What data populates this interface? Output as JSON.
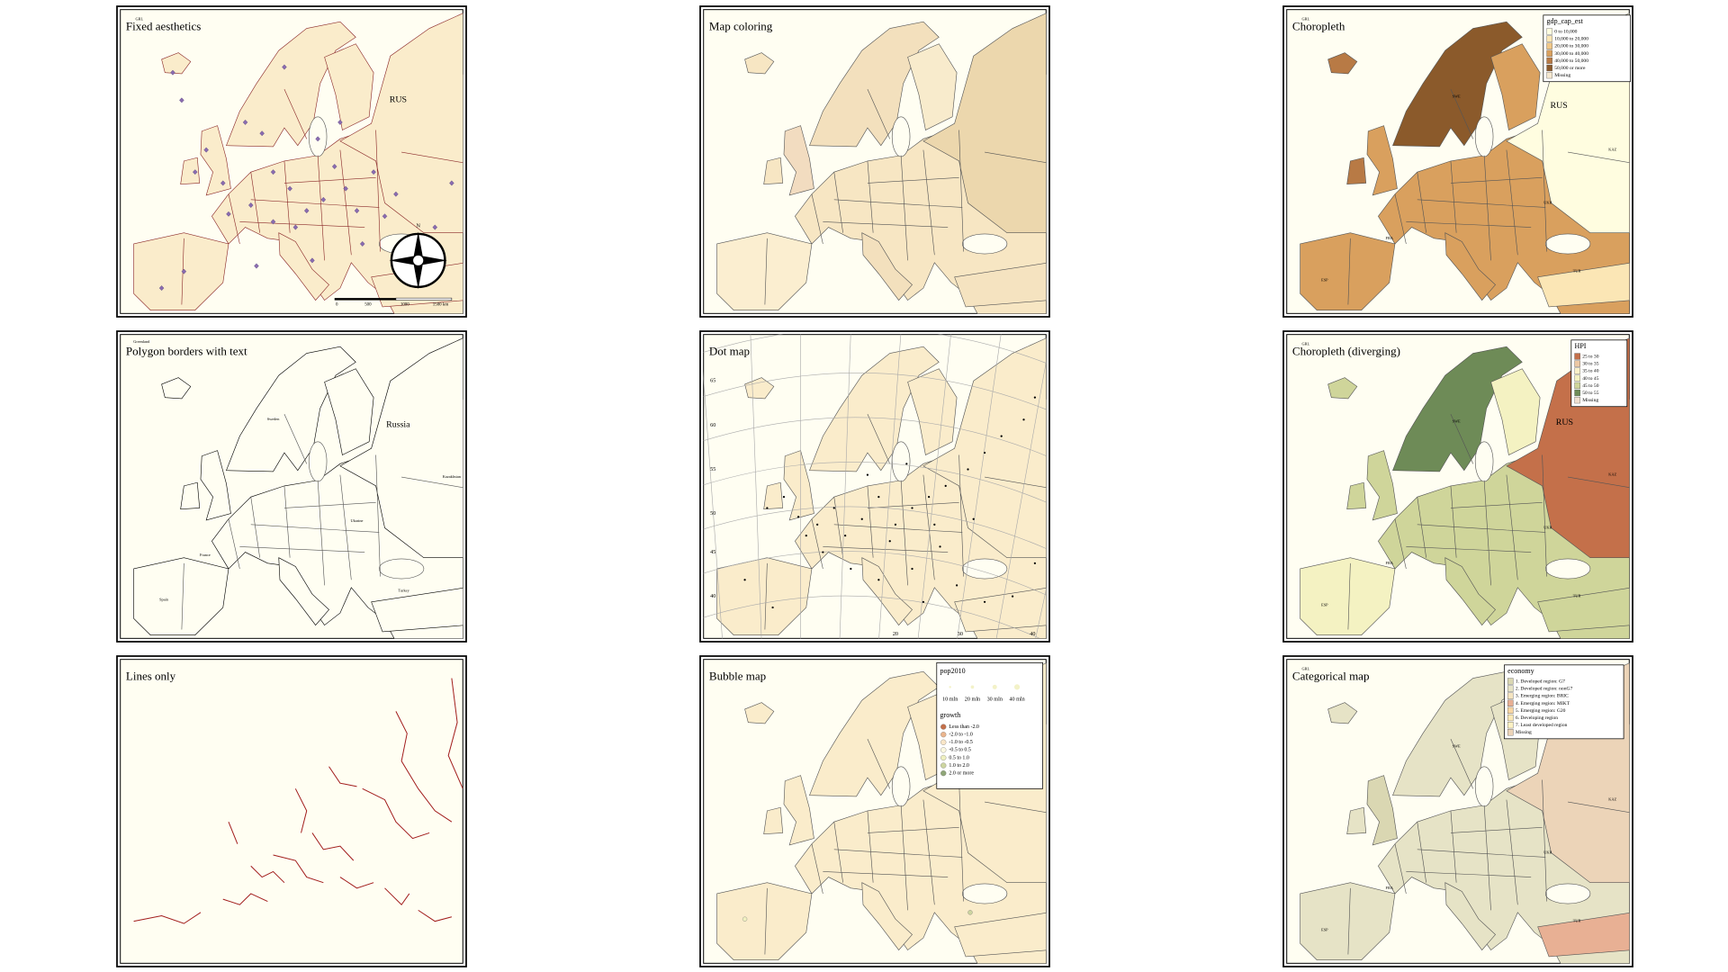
{
  "panels": [
    {
      "title": "Fixed aesthetics",
      "labels": [
        "GRL",
        "RUS"
      ],
      "scale_bar": [
        "0",
        "500",
        "1000",
        "1500 km"
      ],
      "compass": "N"
    },
    {
      "title": "Map coloring"
    },
    {
      "title": "Choropleth",
      "labels": [
        "GRL",
        "SWE",
        "RUS",
        "KAZ",
        "UKR",
        "FRA",
        "ESP",
        "TUR"
      ],
      "legend": {
        "title": "gdp_cap_est",
        "entries": [
          "0 to 10,000",
          "10,000 to 20,000",
          "20,000 to 30,000",
          "30,000 to 40,000",
          "40,000 to 50,000",
          "50,000 or more",
          "Missing"
        ],
        "colors": [
          "#fffde0",
          "#fbe6b5",
          "#f1c889",
          "#d9a05e",
          "#b87a45",
          "#8b5a2b",
          "#f5e8d0"
        ]
      }
    },
    {
      "title": "Polygon borders with text",
      "labels": [
        "Greenland",
        "Sweden",
        "Russia",
        "Kazakhstan",
        "Ukraine",
        "France",
        "Spain",
        "Turkey"
      ]
    },
    {
      "title": "Dot map",
      "yticks": [
        "65",
        "60",
        "55",
        "50",
        "45",
        "40"
      ],
      "xticks": [
        "20",
        "30",
        "40"
      ]
    },
    {
      "title": "Choropleth (diverging)",
      "labels": [
        "GRL",
        "SWE",
        "RUS",
        "KAZ",
        "UKR",
        "FRA",
        "ESP",
        "TUR"
      ],
      "legend": {
        "title": "HPI",
        "entries": [
          "25 to 30",
          "30 to 35",
          "35 to 40",
          "40 to 45",
          "45 to 50",
          "50 to 55",
          "Missing"
        ],
        "colors": [
          "#c4704a",
          "#ecc8a4",
          "#faf0c8",
          "#f4f2c2",
          "#cfd59a",
          "#6e8b57",
          "#f0e0d0"
        ]
      }
    },
    {
      "title": "Lines only"
    },
    {
      "title": "Bubble map",
      "legend": {
        "title": "pop2010",
        "sizes": [
          "10 mln",
          "20 mln",
          "30 mln",
          "40 mln"
        ]
      },
      "legend2": {
        "title": "growth",
        "entries": [
          "Less than -2.0",
          "-2.0 to -1.0",
          "-1.0 to -0.5",
          "-0.5 to 0.5",
          "0.5 to 1.0",
          "1.0 to 2.0",
          "2.0 or more"
        ],
        "colors": [
          "#c4704a",
          "#eab58e",
          "#f9e6c8",
          "#fbf8e0",
          "#eff0c0",
          "#cdd5a0",
          "#8fa678"
        ]
      }
    },
    {
      "title": "Categorical map",
      "labels": [
        "GRL",
        "SWE",
        "KAZ",
        "UKR",
        "FRA",
        "ESP",
        "TUR"
      ],
      "legend": {
        "title": "economy",
        "entries": [
          "1. Developed region: G7",
          "2. Developed region: nonG7",
          "3. Emerging region: BRIC",
          "4. Emerging region: MIKT",
          "5. Emerging region: G20",
          "6. Developing region",
          "7. Least developed region",
          "Missing"
        ],
        "colors": [
          "#dad7b2",
          "#e6e3c6",
          "#f5e4c0",
          "#e8b094",
          "#f9d7a4",
          "#fbe9b8",
          "#fcf1c4",
          "#ecd4b8"
        ]
      }
    }
  ]
}
